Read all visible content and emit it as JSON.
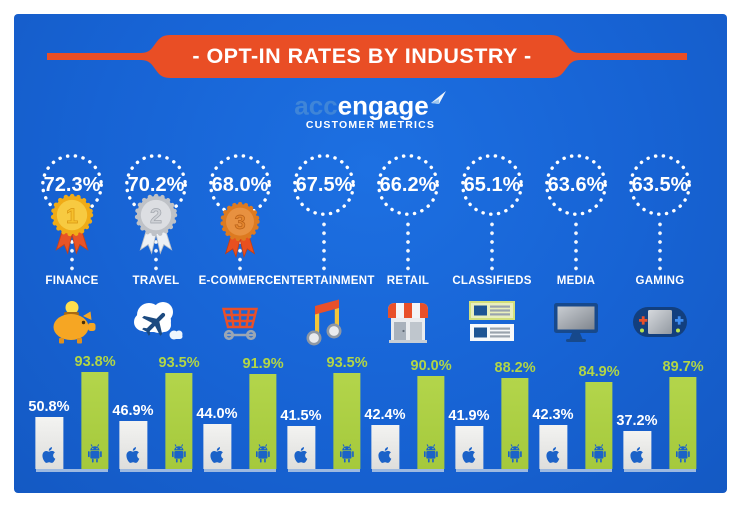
{
  "header": {
    "title": "- OPT-IN RATES BY INDUSTRY -"
  },
  "logo": {
    "acc": "acc",
    "engage": "engage",
    "subtitle": "CUSTOMER METRICS"
  },
  "industries": [
    {
      "name": "FINANCE",
      "rate": "72.3%",
      "rank": "1",
      "icon": "piggy-bank-icon",
      "ios_label": "50.8%",
      "android_label": "93.8%",
      "ios_value": 50.8,
      "android_value": 93.8
    },
    {
      "name": "TRAVEL",
      "rate": "70.2%",
      "rank": "2",
      "icon": "plane-cloud-icon",
      "ios_label": "46.9%",
      "android_label": "93.5%",
      "ios_value": 46.9,
      "android_value": 93.5
    },
    {
      "name": "E-COMMERCE",
      "rate": "68.0%",
      "rank": "3",
      "icon": "shopping-cart-icon",
      "ios_label": "44.0%",
      "android_label": "91.9%",
      "ios_value": 44.0,
      "android_value": 91.9
    },
    {
      "name": "ENTERTAINMENT",
      "rate": "67.5%",
      "rank": null,
      "icon": "music-note-icon",
      "ios_label": "41.5%",
      "android_label": "93.5%",
      "ios_value": 41.5,
      "android_value": 93.5
    },
    {
      "name": "RETAIL",
      "rate": "66.2%",
      "rank": null,
      "icon": "storefront-icon",
      "ios_label": "42.4%",
      "android_label": "90.0%",
      "ios_value": 42.4,
      "android_value": 90.0
    },
    {
      "name": "CLASSIFIEDS",
      "rate": "65.1%",
      "rank": null,
      "icon": "classifieds-icon",
      "ios_label": "41.9%",
      "android_label": "88.2%",
      "ios_value": 41.9,
      "android_value": 88.2
    },
    {
      "name": "MEDIA",
      "rate": "63.6%",
      "rank": null,
      "icon": "tv-monitor-icon",
      "ios_label": "42.3%",
      "android_label": "84.9%",
      "ios_value": 42.3,
      "android_value": 84.9
    },
    {
      "name": "GAMING",
      "rate": "63.5%",
      "rank": null,
      "icon": "game-console-icon",
      "ios_label": "37.2%",
      "android_label": "89.7%",
      "ios_value": 37.2,
      "android_value": 89.7
    }
  ],
  "medals": [
    {
      "rank": "1",
      "outer": "#f0ab17",
      "inner": "#f7ca41",
      "num": "#f6c02c",
      "numStroke": "#d89410",
      "ribbon": "#e85426",
      "ribbonStroke": "#c83f17"
    },
    {
      "rank": "2",
      "outer": "#bfc2c7",
      "inner": "#dcdee2",
      "num": "#ced1d6",
      "numStroke": "#a2a6ad",
      "ribbon": "#edf0f4",
      "ribbonStroke": "#bac0c8"
    },
    {
      "rank": "3",
      "outer": "#dd7a20",
      "inner": "#e89140",
      "num": "#e2852d",
      "numStroke": "#b55d16",
      "ribbon": "#e8501f",
      "ribbonStroke": "#c43d12"
    }
  ],
  "chart_data": {
    "type": "bar",
    "title": "- OPT-IN RATES BY INDUSTRY -",
    "subtitle": "accengage CUSTOMER METRICS",
    "categories": [
      "FINANCE",
      "TRAVEL",
      "E-COMMERCE",
      "ENTERTAINMENT",
      "RETAIL",
      "CLASSIFIEDS",
      "MEDIA",
      "GAMING"
    ],
    "optin_rate_percent": [
      72.3,
      70.2,
      68.0,
      67.5,
      66.2,
      65.1,
      63.6,
      63.5
    ],
    "series": [
      {
        "name": "iOS",
        "values": [
          50.8,
          46.9,
          44.0,
          41.5,
          42.4,
          41.9,
          42.3,
          37.2
        ]
      },
      {
        "name": "Android",
        "values": [
          93.8,
          93.5,
          91.9,
          93.5,
          90.0,
          88.2,
          84.9,
          89.7
        ]
      }
    ],
    "ylim": [
      0,
      100
    ],
    "value_label_format": "percent",
    "grid": false,
    "legend": "platform icons inside bars (apple / android)"
  },
  "colors": {
    "background_blue": "#1765d9",
    "ribbon_orange": "#e94e25",
    "android_green": "#abce43",
    "ios_bar_white": "#e8e8e6",
    "glyph_blue": "#1b62c8",
    "baseline_light_blue": "#9db9e0",
    "medal_gold": "#f3b91d",
    "medal_silver": "#cfcfd3",
    "medal_bronze": "#e87c28"
  }
}
